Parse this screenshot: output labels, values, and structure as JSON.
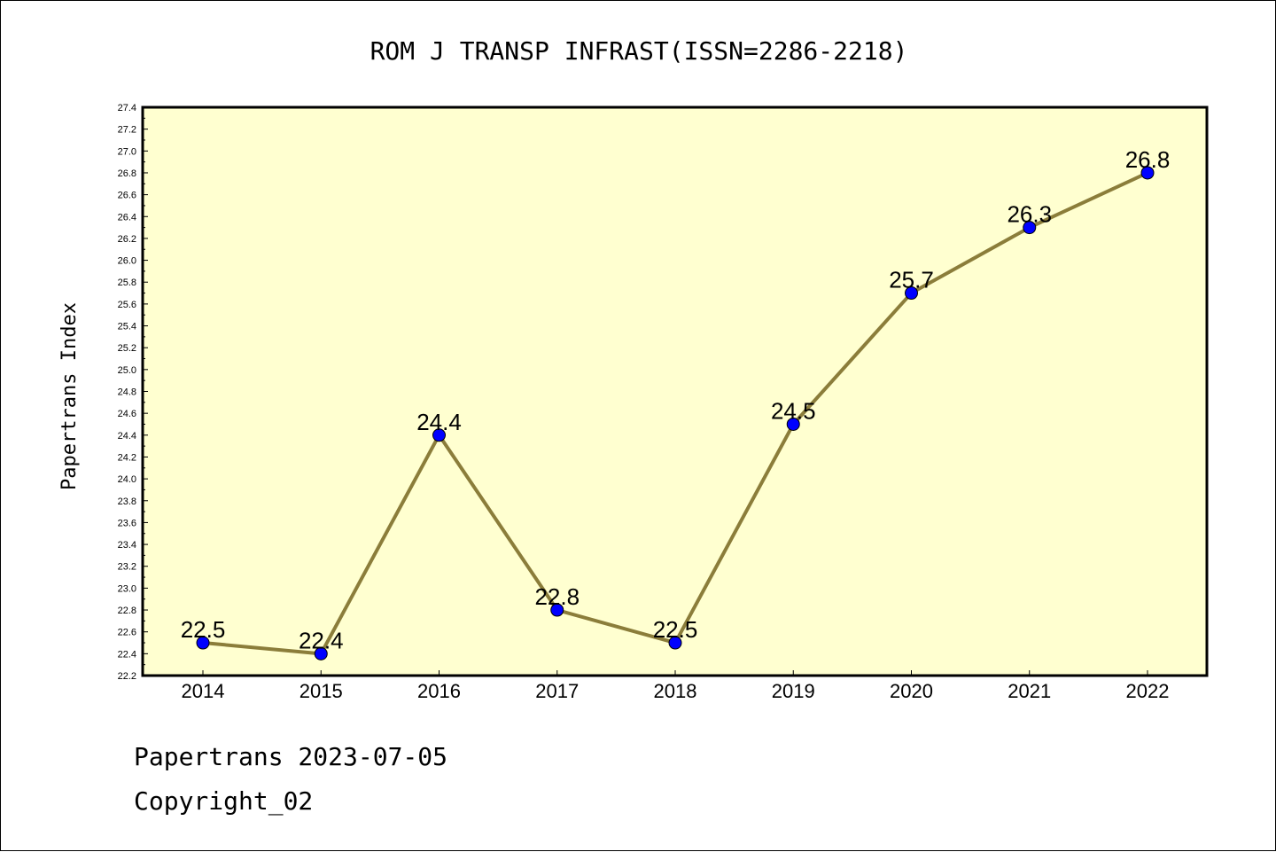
{
  "chart_data": {
    "type": "line",
    "title": "ROM J TRANSP INFRAST(ISSN=2286-2218)",
    "xlabel": "",
    "ylabel": "Papertrans Index",
    "x": [
      "2014",
      "2015",
      "2016",
      "2017",
      "2018",
      "2019",
      "2020",
      "2021",
      "2022"
    ],
    "series": [
      {
        "values": [
          22.5,
          22.4,
          24.4,
          22.8,
          22.5,
          24.5,
          25.7,
          26.3,
          26.8
        ],
        "data_labels": [
          "22.5",
          "22.4",
          "24.4",
          "22.8",
          "22.5",
          "24.5",
          "25.7",
          "26.3",
          "26.8"
        ],
        "line_color": "#8b7d3a",
        "marker_color": "#0000ff"
      }
    ],
    "ylim": [
      22.2,
      27.4
    ],
    "yticks": [
      "22.2",
      "22.4",
      "22.6",
      "22.8",
      "23.0",
      "23.2",
      "23.4",
      "23.6",
      "23.8",
      "24.0",
      "24.2",
      "24.4",
      "24.6",
      "24.8",
      "25.0",
      "25.2",
      "25.4",
      "25.6",
      "25.8",
      "26.0",
      "26.2",
      "26.4",
      "26.6",
      "26.8",
      "27.0",
      "27.2",
      "27.4"
    ],
    "grid": false,
    "plot_background": "#ffffd0"
  },
  "footer": {
    "date_line": "Papertrans 2023-07-05",
    "copyright_line": "Copyright_02"
  }
}
